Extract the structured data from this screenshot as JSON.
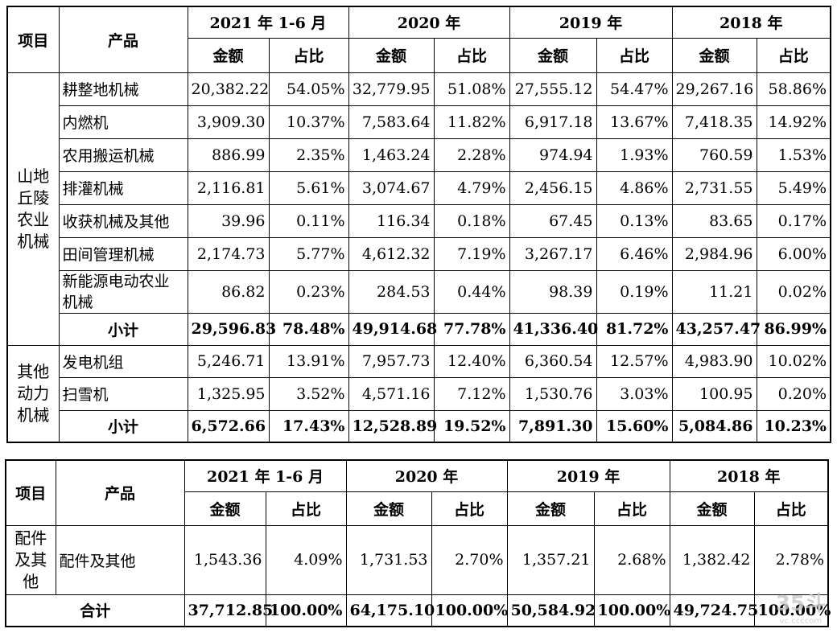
{
  "headers": {
    "item": "项目",
    "product": "产品",
    "periods": [
      "2021 年 1-6 月",
      "2020 年",
      "2019 年",
      "2018 年"
    ],
    "amount": "金额",
    "ratio": "占比"
  },
  "table1": {
    "groups": [
      {
        "name": "山地丘陵农业机械",
        "rows": [
          {
            "product": "耕整地机械",
            "v": [
              "20,382.22",
              "54.05%",
              "32,779.95",
              "51.08%",
              "27,555.12",
              "54.47%",
              "29,267.16",
              "58.86%"
            ]
          },
          {
            "product": "内燃机",
            "v": [
              "3,909.30",
              "10.37%",
              "7,583.64",
              "11.82%",
              "6,917.18",
              "13.67%",
              "7,418.35",
              "14.92%"
            ]
          },
          {
            "product": "农用搬运机械",
            "v": [
              "886.99",
              "2.35%",
              "1,463.24",
              "2.28%",
              "974.94",
              "1.93%",
              "760.59",
              "1.53%"
            ]
          },
          {
            "product": "排灌机械",
            "v": [
              "2,116.81",
              "5.61%",
              "3,074.67",
              "4.79%",
              "2,456.15",
              "4.86%",
              "2,731.55",
              "5.49%"
            ]
          },
          {
            "product": "收获机械及其他",
            "v": [
              "39.96",
              "0.11%",
              "116.34",
              "0.18%",
              "67.45",
              "0.13%",
              "83.65",
              "0.17%"
            ]
          },
          {
            "product": "田间管理机械",
            "v": [
              "2,174.73",
              "5.77%",
              "4,612.32",
              "7.19%",
              "3,267.17",
              "6.46%",
              "2,984.96",
              "6.00%"
            ]
          },
          {
            "product": "新能源电动农业机械",
            "v": [
              "86.82",
              "0.23%",
              "284.53",
              "0.44%",
              "98.39",
              "0.19%",
              "11.21",
              "0.02%"
            ]
          }
        ],
        "subtotal": {
          "label": "小计",
          "v": [
            "29,596.83",
            "78.48%",
            "49,914.68",
            "77.78%",
            "41,336.40",
            "81.72%",
            "43,257.47",
            "86.99%"
          ]
        }
      },
      {
        "name": "其他动力机械",
        "rows": [
          {
            "product": "发电机组",
            "v": [
              "5,246.71",
              "13.91%",
              "7,957.73",
              "12.40%",
              "6,360.54",
              "12.57%",
              "4,983.90",
              "10.02%"
            ]
          },
          {
            "product": "扫雪机",
            "v": [
              "1,325.95",
              "3.52%",
              "4,571.16",
              "7.12%",
              "1,530.76",
              "3.03%",
              "100.95",
              "0.20%"
            ]
          }
        ],
        "subtotal": {
          "label": "小计",
          "v": [
            "6,572.66",
            "17.43%",
            "12,528.89",
            "19.52%",
            "7,891.30",
            "15.60%",
            "5,084.86",
            "10.23%"
          ]
        }
      }
    ]
  },
  "table2": {
    "group": "配件及其他",
    "row": {
      "product": "配件及其他",
      "v": [
        "1,543.36",
        "4.09%",
        "1,731.53",
        "2.70%",
        "1,357.21",
        "2.68%",
        "1,382.42",
        "2.78%"
      ]
    },
    "total": {
      "label": "合计",
      "v": [
        "37,712.85",
        "100.00%",
        "64,175.10",
        "100.00%",
        "50,584.92",
        "100.00%",
        "49,724.75",
        "100.00%"
      ]
    }
  },
  "watermark": {
    "main": "35斗",
    "sub": "vc.ccccom"
  }
}
